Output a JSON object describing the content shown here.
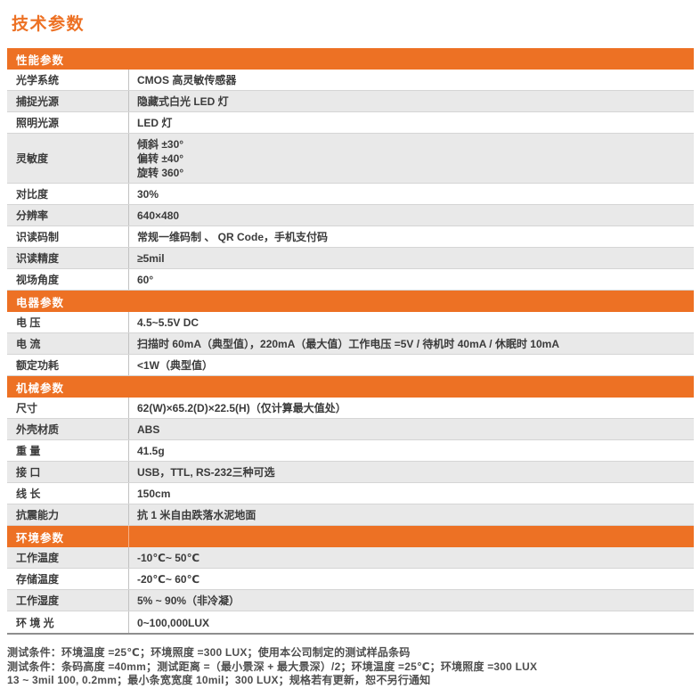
{
  "page": {
    "title": "技术参数"
  },
  "colors": {
    "accent_orange": "#ED7124",
    "section_header_text": "#FFFFFF",
    "row_shaded_bg": "#E9E9E9",
    "row_border": "#D5D5D5",
    "column_divider": "#C2C2C2",
    "table_bottom_border": "#8E8E8E",
    "body_text": "#3B3B3B",
    "footer_text": "#4F4F4F"
  },
  "table": {
    "sections": [
      {
        "header": "性能参数",
        "header_divider": false,
        "rows": [
          {
            "label": "光学系统",
            "value": "CMOS 高灵敏传感器",
            "shaded": false
          },
          {
            "label": "捕捉光源",
            "value": "隐藏式白光 LED 灯",
            "shaded": true
          },
          {
            "label": "照明光源",
            "value": "LED 灯",
            "shaded": false
          },
          {
            "label": "灵敏度",
            "value": "倾斜 ±30°\n偏转 ±40°\n旋转 360°",
            "shaded": true
          },
          {
            "label": "对比度",
            "value": "30%",
            "shaded": false
          },
          {
            "label": "分辨率",
            "value": "640×480",
            "shaded": true
          },
          {
            "label": "识读码制",
            "value": "常规一维码制 、 QR Code，手机支付码",
            "shaded": false
          },
          {
            "label": "识读精度",
            "value": "≥5mil",
            "shaded": true
          },
          {
            "label": "视场角度",
            "value": "60°",
            "shaded": false
          }
        ]
      },
      {
        "header": "电器参数",
        "header_divider": false,
        "rows": [
          {
            "label": "电 压",
            "value": "4.5~5.5V DC",
            "shaded": false
          },
          {
            "label": "电 流",
            "value": "扫描时 60mA（典型值），220mA（最大值）工作电压 =5V / 待机时 40mA / 休眠时 10mA",
            "shaded": true
          },
          {
            "label": "额定功耗",
            "value": "<1W（典型值）",
            "shaded": false
          }
        ]
      },
      {
        "header": "机械参数",
        "header_divider": false,
        "rows": [
          {
            "label": "尺寸",
            "value": "62(W)×65.2(D)×22.5(H)（仅计算最大值处）",
            "shaded": false
          },
          {
            "label": "外壳材质",
            "value": "ABS",
            "shaded": true
          },
          {
            "label": "重 量",
            "value": "41.5g",
            "shaded": false
          },
          {
            "label": "接 口",
            "value": "USB，TTL, RS-232三种可选",
            "shaded": true
          },
          {
            "label": "线 长",
            "value": "150cm",
            "shaded": false
          },
          {
            "label": "抗震能力",
            "value": "抗 1 米自由跌落水泥地面",
            "shaded": true
          }
        ]
      },
      {
        "header": "环境参数",
        "header_divider": true,
        "rows": [
          {
            "label": "工作温度",
            "value": "-10℃~ 50℃",
            "shaded": true
          },
          {
            "label": "存储温度",
            "value": "-20℃~ 60℃",
            "shaded": false
          },
          {
            "label": "工作湿度",
            "value": "5% ~ 90%（非冷凝）",
            "shaded": true
          },
          {
            "label": "环 境 光",
            "value": "0~100,000LUX",
            "shaded": false
          }
        ]
      }
    ]
  },
  "footer": {
    "lines": [
      "测试条件：环境温度 =25℃；环境照度 =300 LUX；使用本公司制定的测试样品条码",
      "测试条件：条码高度 =40mm；测试距离 =（最小景深 + 最大景深）/2；环境温度 =25℃；环境照度 =300 LUX",
      "13 ~ 3mil 100, 0.2mm；最小条宽宽度 10mil；300 LUX；规格若有更新，恕不另行通知"
    ]
  }
}
